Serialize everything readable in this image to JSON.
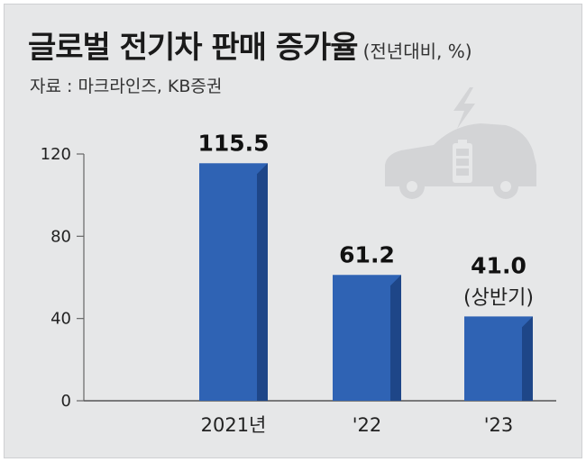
{
  "title": "글로벌 전기차 판매 증가율",
  "title_unit": "(전년대비, %)",
  "source": "자료 : 마크라인즈, KB증권",
  "colors": {
    "bar_front": "#2f63b4",
    "bar_side": "#1e4688",
    "background": "#e6e7e8",
    "illustration": "#d3d4d6"
  },
  "illustration_icon": "electric-car-charging-icon",
  "chart_data": {
    "type": "bar",
    "categories": [
      "2021년",
      "'22",
      "'23"
    ],
    "values": [
      115.5,
      61.2,
      41.0
    ],
    "value_labels": [
      "115.5",
      "61.2",
      "41.0"
    ],
    "annotations": [
      "",
      "",
      "(상반기)"
    ],
    "ylim": [
      0,
      120
    ],
    "yticks": [
      0,
      40,
      80,
      120
    ],
    "ytick_labels": [
      "0",
      "40",
      "80",
      "120"
    ],
    "grid": false
  }
}
